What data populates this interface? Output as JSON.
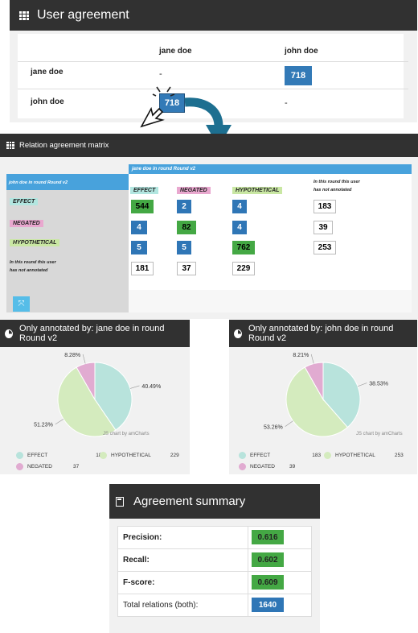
{
  "user_agreement": {
    "title": "User agreement",
    "columns": [
      "jane doe",
      "john doe"
    ],
    "rows": [
      {
        "label": "jane doe",
        "cells": [
          "-",
          "718"
        ]
      },
      {
        "label": "john doe",
        "cells": [
          "718",
          "-"
        ]
      }
    ]
  },
  "relation_matrix": {
    "title": "Relation agreement matrix",
    "top_header": "jane doe in round Round v2",
    "left_header": "john doe in round Round v2",
    "col_labels": [
      "EFFECT",
      "NEGATED",
      "HYPOTHETICAL"
    ],
    "not_annotated_label_1": "In this round this user",
    "not_annotated_label_2": "has not annotated",
    "row_labels": [
      "EFFECT",
      "NEGATED",
      "HYPOTHETICAL"
    ],
    "rows": [
      [
        "544",
        "2",
        "4",
        "183"
      ],
      [
        "4",
        "82",
        "4",
        "39"
      ],
      [
        "5",
        "5",
        "762",
        "253"
      ]
    ],
    "bottom_row": [
      "181",
      "37",
      "229"
    ],
    "colors": {
      "effect": "#b2e6e0",
      "negated": "#e9a8cf",
      "hypothetical": "#c9e7a3",
      "green": "#44a844",
      "blue": "#2f76b6",
      "header_blue": "#48a2dc"
    }
  },
  "pie_left": {
    "title": "Only annotated by: jane doe in round Round v2",
    "credit": "JS chart by amCharts",
    "legend": [
      {
        "name": "EFFECT",
        "value": "181"
      },
      {
        "name": "HYPOTHETICAL",
        "value": "229"
      },
      {
        "name": "NEGATED",
        "value": "37"
      }
    ],
    "labels": [
      "40.49%",
      "51.23%",
      "8.28%"
    ]
  },
  "pie_right": {
    "title": "Only annotated by: john doe in round Round v2",
    "credit": "JS chart by amCharts",
    "legend": [
      {
        "name": "EFFECT",
        "value": "183"
      },
      {
        "name": "HYPOTHETICAL",
        "value": "253"
      },
      {
        "name": "NEGATED",
        "value": "39"
      }
    ],
    "labels": [
      "38.53%",
      "53.26%",
      "8.21%"
    ]
  },
  "chart_data": [
    {
      "type": "pie",
      "title": "Only annotated by: jane doe in round Round v2",
      "categories": [
        "EFFECT",
        "HYPOTHETICAL",
        "NEGATED"
      ],
      "values": [
        181,
        229,
        37
      ],
      "percent_labels": [
        "40.49%",
        "51.23%",
        "8.28%"
      ],
      "colors": [
        "#b8e3dc",
        "#d4ebbe",
        "#e1abd1"
      ]
    },
    {
      "type": "pie",
      "title": "Only annotated by: john doe in round Round v2",
      "categories": [
        "EFFECT",
        "HYPOTHETICAL",
        "NEGATED"
      ],
      "values": [
        183,
        253,
        39
      ],
      "percent_labels": [
        "38.53%",
        "53.26%",
        "8.21%"
      ],
      "colors": [
        "#b8e3dc",
        "#d4ebbe",
        "#e1abd1"
      ]
    }
  ],
  "summary": {
    "title": "Agreement summary",
    "rows": [
      {
        "label": "Precision:",
        "value": "0.616"
      },
      {
        "label": "Recall:",
        "value": "0.602"
      },
      {
        "label": "F-score:",
        "value": "0.609"
      },
      {
        "label": "Total relations (both):",
        "value": "1640"
      }
    ],
    "colors": {
      "green": "#44a844",
      "blue": "#2f76b6"
    }
  }
}
